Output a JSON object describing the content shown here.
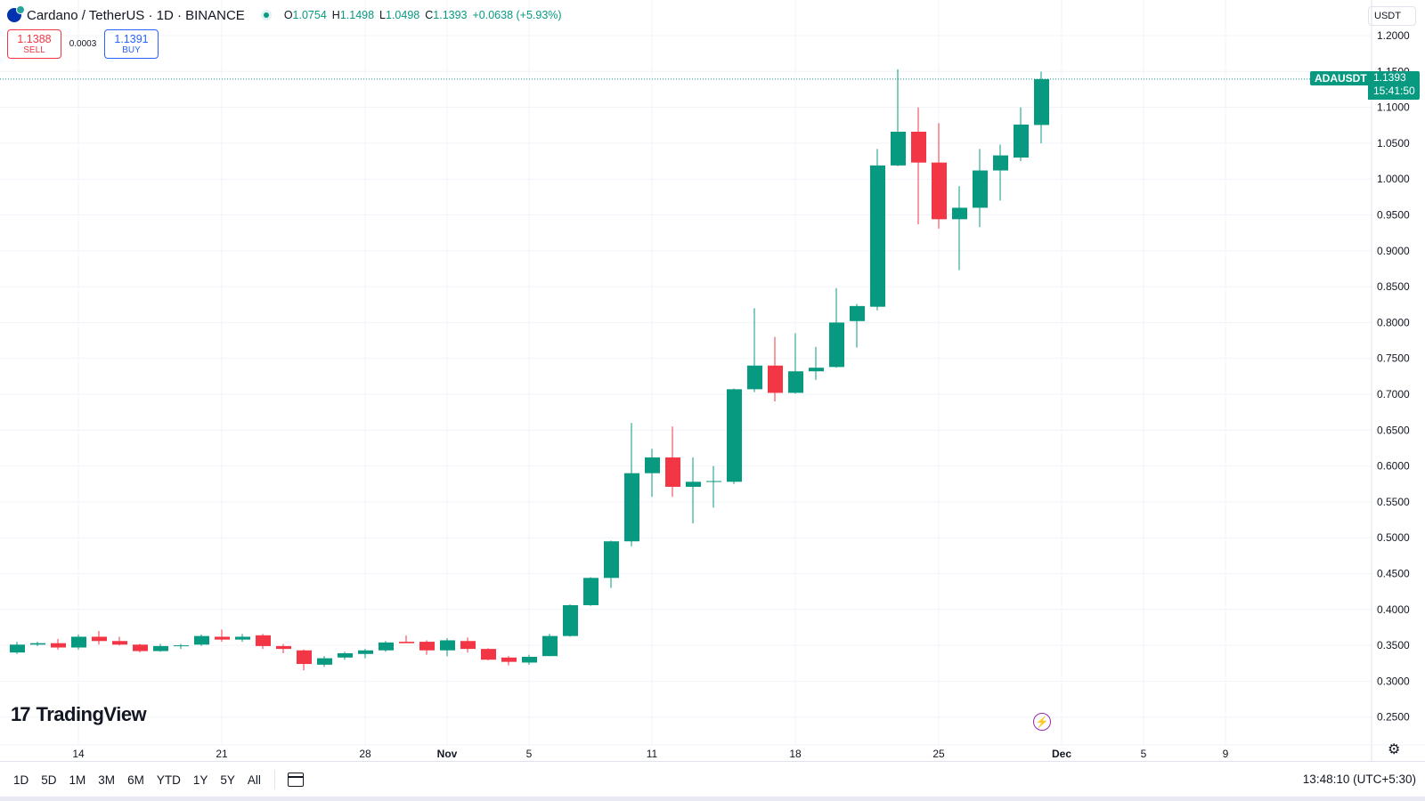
{
  "header": {
    "symbol_title": "Cardano / TetherUS · 1D · BINANCE",
    "ohlc": {
      "o_label": "O",
      "o": "1.0754",
      "h_label": "H",
      "h": "1.1498",
      "l_label": "L",
      "l": "1.0498",
      "c_label": "C",
      "c": "1.1393",
      "change": "+0.0638 (+5.93%)"
    }
  },
  "trade": {
    "sell_price": "1.1388",
    "sell_label": "SELL",
    "spread": "0.0003",
    "buy_price": "1.1391",
    "buy_label": "BUY"
  },
  "price_scale": {
    "currency": "USDT",
    "last_symbol": "ADAUSDT",
    "last_price": "1.1393",
    "countdown": "15:41:50"
  },
  "branding": {
    "logo_text": "TradingView",
    "logo_mark": "17"
  },
  "bottom_bar": {
    "periods": [
      "1D",
      "5D",
      "1M",
      "3M",
      "6M",
      "YTD",
      "1Y",
      "5Y",
      "All"
    ],
    "time": "13:48:10 (UTC+5:30)"
  },
  "colors": {
    "up": "#089981",
    "down": "#f23645",
    "grid": "#f0f3fa"
  },
  "icons": [
    "cardano-icon",
    "binance-icon",
    "market-status-icon",
    "calendar-range-icon",
    "lightning-icon",
    "settings-gear-icon"
  ],
  "chart_data": {
    "type": "candlestick",
    "symbol": "ADAUSDT",
    "interval": "1D",
    "y_ticks": [
      "1.2000",
      "1.1500",
      "1.1000",
      "1.0500",
      "1.0000",
      "0.9500",
      "0.9000",
      "0.8500",
      "0.8000",
      "0.7500",
      "0.7000",
      "0.6500",
      "0.6000",
      "0.5500",
      "0.5000",
      "0.4500",
      "0.4000",
      "0.3500",
      "0.3000",
      "0.2500"
    ],
    "x_ticks": [
      {
        "label": "14",
        "index": 3
      },
      {
        "label": "21",
        "index": 10
      },
      {
        "label": "28",
        "index": 17
      },
      {
        "label": "Nov",
        "index": 21
      },
      {
        "label": "5",
        "index": 25
      },
      {
        "label": "11",
        "index": 31
      },
      {
        "label": "18",
        "index": 38
      },
      {
        "label": "25",
        "index": 45
      },
      {
        "label": "Dec",
        "index": 51
      },
      {
        "label": "5",
        "index": 55
      },
      {
        "label": "9",
        "index": 59
      }
    ],
    "last_price_line": 1.1393,
    "candles": [
      {
        "o": 0.34,
        "h": 0.355,
        "l": 0.338,
        "c": 0.351
      },
      {
        "o": 0.351,
        "h": 0.355,
        "l": 0.349,
        "c": 0.353
      },
      {
        "o": 0.353,
        "h": 0.359,
        "l": 0.344,
        "c": 0.347
      },
      {
        "o": 0.347,
        "h": 0.365,
        "l": 0.344,
        "c": 0.362
      },
      {
        "o": 0.362,
        "h": 0.37,
        "l": 0.351,
        "c": 0.356
      },
      {
        "o": 0.356,
        "h": 0.362,
        "l": 0.35,
        "c": 0.351
      },
      {
        "o": 0.351,
        "h": 0.352,
        "l": 0.34,
        "c": 0.342
      },
      {
        "o": 0.342,
        "h": 0.352,
        "l": 0.341,
        "c": 0.349
      },
      {
        "o": 0.349,
        "h": 0.352,
        "l": 0.345,
        "c": 0.35
      },
      {
        "o": 0.351,
        "h": 0.365,
        "l": 0.349,
        "c": 0.363
      },
      {
        "o": 0.362,
        "h": 0.372,
        "l": 0.355,
        "c": 0.358
      },
      {
        "o": 0.358,
        "h": 0.366,
        "l": 0.355,
        "c": 0.362
      },
      {
        "o": 0.364,
        "h": 0.366,
        "l": 0.345,
        "c": 0.349
      },
      {
        "o": 0.349,
        "h": 0.352,
        "l": 0.339,
        "c": 0.345
      },
      {
        "o": 0.343,
        "h": 0.344,
        "l": 0.315,
        "c": 0.324
      },
      {
        "o": 0.323,
        "h": 0.335,
        "l": 0.32,
        "c": 0.332
      },
      {
        "o": 0.333,
        "h": 0.341,
        "l": 0.33,
        "c": 0.339
      },
      {
        "o": 0.338,
        "h": 0.345,
        "l": 0.332,
        "c": 0.343
      },
      {
        "o": 0.343,
        "h": 0.356,
        "l": 0.341,
        "c": 0.354
      },
      {
        "o": 0.355,
        "h": 0.364,
        "l": 0.354,
        "c": 0.353
      },
      {
        "o": 0.355,
        "h": 0.357,
        "l": 0.337,
        "c": 0.343
      },
      {
        "o": 0.343,
        "h": 0.36,
        "l": 0.335,
        "c": 0.357
      },
      {
        "o": 0.356,
        "h": 0.361,
        "l": 0.34,
        "c": 0.345
      },
      {
        "o": 0.345,
        "h": 0.346,
        "l": 0.329,
        "c": 0.33
      },
      {
        "o": 0.333,
        "h": 0.335,
        "l": 0.322,
        "c": 0.327
      },
      {
        "o": 0.326,
        "h": 0.337,
        "l": 0.323,
        "c": 0.334
      },
      {
        "o": 0.335,
        "h": 0.366,
        "l": 0.335,
        "c": 0.363
      },
      {
        "o": 0.363,
        "h": 0.407,
        "l": 0.362,
        "c": 0.406
      },
      {
        "o": 0.406,
        "h": 0.445,
        "l": 0.405,
        "c": 0.444
      },
      {
        "o": 0.444,
        "h": 0.496,
        "l": 0.43,
        "c": 0.495
      },
      {
        "o": 0.495,
        "h": 0.66,
        "l": 0.488,
        "c": 0.59
      },
      {
        "o": 0.59,
        "h": 0.624,
        "l": 0.557,
        "c": 0.612
      },
      {
        "o": 0.612,
        "h": 0.655,
        "l": 0.557,
        "c": 0.571
      },
      {
        "o": 0.571,
        "h": 0.612,
        "l": 0.52,
        "c": 0.578
      },
      {
        "o": 0.578,
        "h": 0.6,
        "l": 0.542,
        "c": 0.579
      },
      {
        "o": 0.578,
        "h": 0.708,
        "l": 0.575,
        "c": 0.707
      },
      {
        "o": 0.707,
        "h": 0.82,
        "l": 0.703,
        "c": 0.74
      },
      {
        "o": 0.74,
        "h": 0.78,
        "l": 0.69,
        "c": 0.702
      },
      {
        "o": 0.702,
        "h": 0.785,
        "l": 0.701,
        "c": 0.732
      },
      {
        "o": 0.732,
        "h": 0.766,
        "l": 0.72,
        "c": 0.737
      },
      {
        "o": 0.738,
        "h": 0.848,
        "l": 0.737,
        "c": 0.8
      },
      {
        "o": 0.802,
        "h": 0.826,
        "l": 0.765,
        "c": 0.823
      },
      {
        "o": 0.822,
        "h": 1.042,
        "l": 0.817,
        "c": 1.019
      },
      {
        "o": 1.019,
        "h": 1.153,
        "l": 1.018,
        "c": 1.066
      },
      {
        "o": 1.066,
        "h": 1.1,
        "l": 0.937,
        "c": 1.023
      },
      {
        "o": 1.023,
        "h": 1.078,
        "l": 0.931,
        "c": 0.944
      },
      {
        "o": 0.944,
        "h": 0.99,
        "l": 0.873,
        "c": 0.96
      },
      {
        "o": 0.96,
        "h": 1.042,
        "l": 0.933,
        "c": 1.012
      },
      {
        "o": 1.012,
        "h": 1.048,
        "l": 0.97,
        "c": 1.033
      },
      {
        "o": 1.03,
        "h": 1.1,
        "l": 1.025,
        "c": 1.076
      },
      {
        "o": 1.0754,
        "h": 1.1498,
        "l": 1.0498,
        "c": 1.1393
      }
    ]
  }
}
